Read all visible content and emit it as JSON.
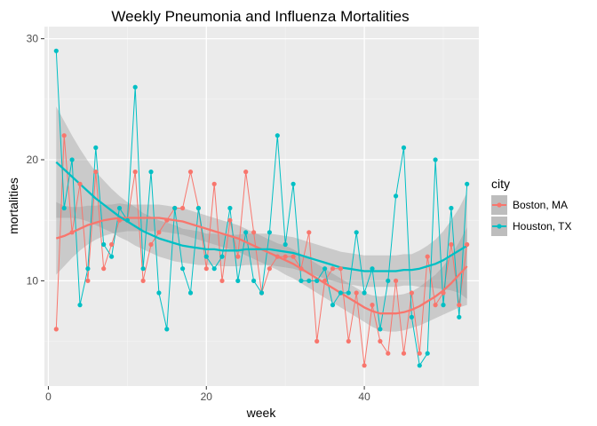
{
  "chart_data": {
    "type": "line",
    "title": "Weekly Pneumonia and Influenza Mortalities",
    "xlabel": "week",
    "ylabel": "mortalities",
    "xlim": [
      -0.5,
      54.5
    ],
    "ylim": [
      1.3,
      31.0
    ],
    "x_ticks": [
      0,
      20,
      40
    ],
    "y_ticks": [
      10,
      20,
      30
    ],
    "x_minor": [
      10,
      30,
      50
    ],
    "y_minor": [
      5,
      15,
      25
    ],
    "background": "#EBEBEB",
    "grid": true,
    "legend": {
      "title": "city",
      "placement": "right"
    },
    "x": [
      1,
      2,
      3,
      4,
      5,
      6,
      7,
      8,
      9,
      10,
      11,
      12,
      13,
      14,
      15,
      16,
      17,
      18,
      19,
      20,
      21,
      22,
      23,
      24,
      25,
      26,
      27,
      28,
      29,
      30,
      31,
      32,
      33,
      34,
      35,
      36,
      37,
      38,
      39,
      40,
      41,
      42,
      43,
      44,
      45,
      46,
      47,
      48,
      49,
      50,
      51,
      52,
      53
    ],
    "series": [
      {
        "name": "Boston, MA",
        "color": "#F8766D",
        "values": [
          6,
          22,
          14,
          18,
          10,
          19,
          11,
          13,
          15,
          15,
          19,
          10,
          13,
          14,
          15,
          16,
          16,
          19,
          16,
          11,
          18,
          10,
          15,
          12,
          19,
          14,
          9,
          11,
          12,
          12,
          12,
          11,
          14,
          5,
          10,
          11,
          11,
          5,
          9,
          3,
          8,
          5,
          4,
          10,
          4,
          9,
          4,
          12,
          8,
          9,
          13,
          8,
          13
        ],
        "smooth": [
          13.5,
          13.7,
          14.0,
          14.3,
          14.6,
          14.8,
          15.0,
          15.1,
          15.2,
          15.2,
          15.2,
          15.2,
          15.2,
          15.2,
          15.1,
          15.0,
          14.9,
          14.7,
          14.5,
          14.3,
          14.1,
          13.9,
          13.7,
          13.5,
          13.2,
          12.9,
          12.6,
          12.3,
          12.0,
          11.7,
          11.4,
          11.0,
          10.6,
          10.2,
          9.8,
          9.4,
          9.0,
          8.6,
          8.2,
          7.8,
          7.5,
          7.3,
          7.3,
          7.3,
          7.4,
          7.6,
          7.9,
          8.3,
          8.7,
          9.2,
          9.8,
          10.5,
          11.2
        ],
        "band_lower": [
          10.5,
          11.2,
          11.9,
          12.5,
          13.0,
          13.4,
          13.7,
          13.9,
          14.0,
          14.1,
          14.1,
          14.1,
          14.1,
          14.1,
          14.0,
          13.9,
          13.8,
          13.6,
          13.4,
          13.2,
          13.0,
          12.8,
          12.6,
          12.4,
          12.1,
          11.8,
          11.5,
          11.2,
          10.9,
          10.5,
          10.2,
          9.8,
          9.4,
          9.0,
          8.6,
          8.2,
          7.8,
          7.4,
          7.0,
          6.6,
          6.2,
          5.9,
          5.8,
          5.8,
          5.9,
          6.1,
          6.3,
          6.6,
          6.9,
          7.2,
          7.5,
          7.8,
          8.0
        ],
        "band_upper": [
          16.5,
          16.2,
          16.1,
          16.1,
          16.2,
          16.2,
          16.3,
          16.3,
          16.4,
          16.3,
          16.3,
          16.3,
          16.3,
          16.3,
          16.2,
          16.1,
          16.0,
          15.8,
          15.6,
          15.4,
          15.2,
          15.0,
          14.8,
          14.6,
          14.3,
          14.0,
          13.7,
          13.4,
          13.1,
          12.9,
          12.6,
          12.2,
          11.8,
          11.4,
          11.0,
          10.6,
          10.2,
          9.8,
          9.4,
          9.0,
          8.8,
          8.7,
          8.8,
          8.8,
          8.9,
          9.1,
          9.5,
          10.0,
          10.5,
          11.2,
          12.1,
          13.2,
          14.4
        ]
      },
      {
        "name": "Houston, TX",
        "color": "#00BFC4",
        "values": [
          29,
          16,
          20,
          8,
          11,
          21,
          13,
          12,
          16,
          15,
          26,
          11,
          19,
          9,
          6,
          16,
          11,
          9,
          16,
          12,
          11,
          12,
          16,
          10,
          14,
          10,
          9,
          14,
          22,
          13,
          18,
          10,
          10,
          10,
          11,
          8,
          9,
          9,
          14,
          9,
          11,
          6,
          10,
          17,
          21,
          7,
          3,
          4,
          20,
          8,
          16,
          7,
          18
        ],
        "smooth": [
          19.8,
          19.2,
          18.6,
          18.0,
          17.4,
          16.8,
          16.3,
          15.8,
          15.3,
          14.9,
          14.5,
          14.1,
          13.8,
          13.5,
          13.3,
          13.1,
          12.9,
          12.8,
          12.7,
          12.6,
          12.6,
          12.5,
          12.5,
          12.5,
          12.6,
          12.6,
          12.6,
          12.6,
          12.5,
          12.4,
          12.3,
          12.1,
          11.9,
          11.7,
          11.5,
          11.3,
          11.1,
          11.0,
          10.9,
          10.8,
          10.8,
          10.8,
          10.8,
          10.8,
          10.9,
          10.9,
          11.0,
          11.2,
          11.4,
          11.7,
          12.1,
          12.5,
          12.9
        ],
        "band_lower": [
          15.2,
          15.2,
          15.2,
          15.1,
          14.9,
          14.6,
          14.3,
          14.0,
          13.6,
          13.3,
          12.9,
          12.6,
          12.3,
          12.0,
          11.8,
          11.6,
          11.5,
          11.4,
          11.3,
          11.3,
          11.3,
          11.2,
          11.2,
          11.2,
          11.3,
          11.3,
          11.3,
          11.3,
          11.2,
          11.1,
          11.0,
          10.8,
          10.6,
          10.4,
          10.2,
          10.0,
          9.8,
          9.7,
          9.6,
          9.5,
          9.5,
          9.5,
          9.5,
          9.5,
          9.6,
          9.6,
          9.5,
          9.5,
          9.4,
          9.3,
          9.2,
          9.0,
          8.5
        ],
        "band_upper": [
          24.4,
          23.2,
          22.0,
          20.9,
          19.9,
          19.0,
          18.3,
          17.6,
          17.0,
          16.5,
          16.1,
          15.6,
          15.3,
          15.0,
          14.8,
          14.6,
          14.3,
          14.2,
          14.1,
          13.9,
          13.9,
          13.8,
          13.8,
          13.8,
          13.9,
          13.9,
          13.9,
          13.9,
          13.8,
          13.7,
          13.6,
          13.4,
          13.2,
          13.0,
          12.8,
          12.6,
          12.4,
          12.3,
          12.2,
          12.1,
          12.1,
          12.1,
          12.1,
          12.1,
          12.2,
          12.2,
          12.5,
          12.9,
          13.4,
          14.1,
          15.0,
          16.0,
          17.3
        ]
      }
    ]
  }
}
